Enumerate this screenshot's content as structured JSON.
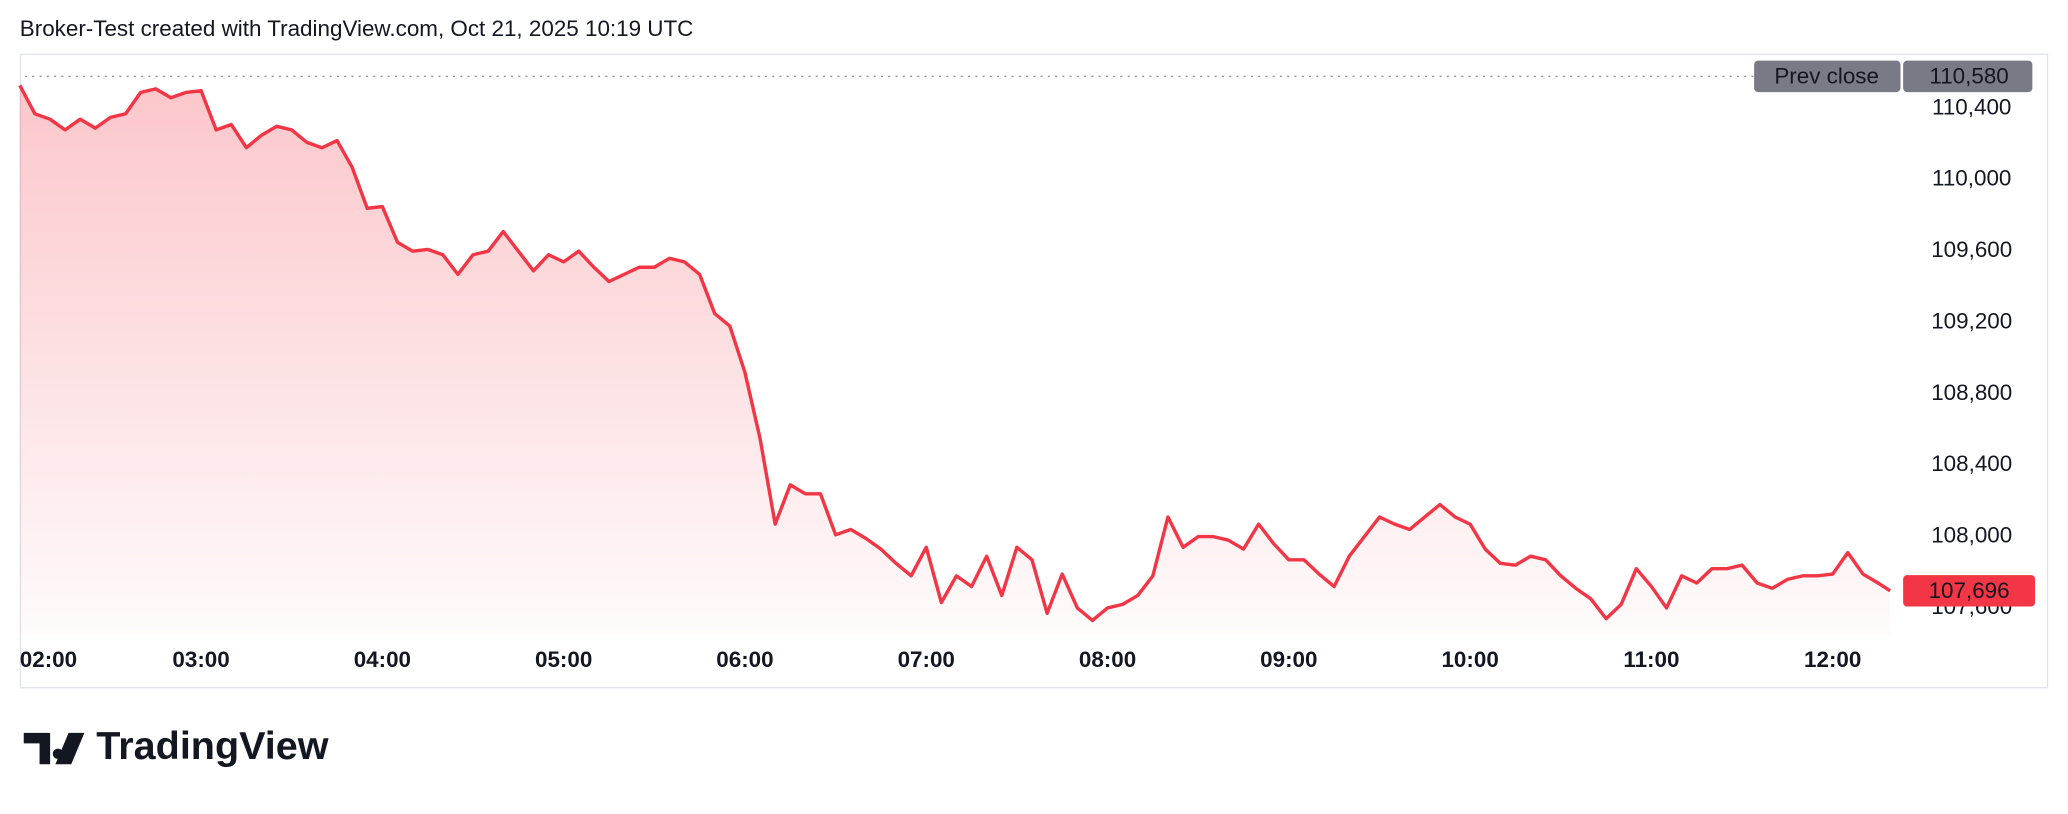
{
  "header": {
    "text": "Broker-Test created with TradingView.com, Oct 21, 2025 10:19 UTC"
  },
  "footer": {
    "logo_text": "TradingView"
  },
  "chart_data": {
    "type": "area-line",
    "color": "#f23645",
    "x": [
      120,
      125,
      130,
      135,
      140,
      145,
      150,
      155,
      160,
      165,
      170,
      175,
      180,
      185,
      190,
      195,
      200,
      205,
      210,
      215,
      220,
      225,
      230,
      235,
      240,
      245,
      250,
      255,
      260,
      265,
      270,
      275,
      280,
      285,
      290,
      295,
      300,
      305,
      310,
      315,
      320,
      325,
      330,
      335,
      340,
      345,
      350,
      355,
      360,
      365,
      370,
      375,
      380,
      385,
      390,
      395,
      400,
      405,
      410,
      415,
      420,
      425,
      430,
      435,
      440,
      445,
      450,
      455,
      460,
      465,
      470,
      475,
      480,
      485,
      490,
      495,
      500,
      505,
      510,
      515,
      520,
      525,
      530,
      535,
      540,
      545,
      550,
      555,
      560,
      565,
      570,
      575,
      580,
      585,
      590,
      595,
      600,
      605,
      610,
      615,
      620,
      625,
      630,
      635,
      640,
      645,
      650,
      655,
      660,
      665,
      670,
      675,
      680,
      685,
      690,
      695,
      700,
      705,
      710,
      715,
      720,
      725,
      730,
      735,
      739
    ],
    "values": [
      110530,
      110370,
      110340,
      110280,
      110340,
      110290,
      110350,
      110370,
      110490,
      110510,
      110460,
      110490,
      110500,
      110280,
      110310,
      110180,
      110250,
      110300,
      110280,
      110210,
      110180,
      110220,
      110070,
      109840,
      109850,
      109650,
      109600,
      109610,
      109580,
      109470,
      109580,
      109600,
      109710,
      109600,
      109490,
      109580,
      109540,
      109600,
      109510,
      109430,
      109470,
      109510,
      109510,
      109560,
      109540,
      109470,
      109250,
      109180,
      108920,
      108550,
      108070,
      108290,
      108240,
      108240,
      108010,
      108040,
      107990,
      107930,
      107850,
      107780,
      107940,
      107630,
      107780,
      107720,
      107890,
      107670,
      107940,
      107870,
      107570,
      107790,
      107600,
      107530,
      107600,
      107620,
      107670,
      107780,
      108110,
      107940,
      108000,
      108000,
      107980,
      107930,
      108070,
      107960,
      107870,
      107870,
      107790,
      107720,
      107890,
      108000,
      108110,
      108070,
      108040,
      108110,
      108180,
      108110,
      108070,
      107930,
      107850,
      107840,
      107890,
      107870,
      107780,
      107710,
      107650,
      107540,
      107620,
      107820,
      107720,
      107600,
      107780,
      107740,
      107820,
      107820,
      107840,
      107740,
      107710,
      107760,
      107780,
      107780,
      107790,
      107910,
      107790,
      107740,
      107696
    ],
    "xlim": [
      120,
      742
    ],
    "ylim": [
      107450,
      110700
    ],
    "xticks": [
      {
        "value": 120,
        "label": "02:00"
      },
      {
        "value": 180,
        "label": "03:00"
      },
      {
        "value": 240,
        "label": "04:00"
      },
      {
        "value": 300,
        "label": "05:00"
      },
      {
        "value": 360,
        "label": "06:00"
      },
      {
        "value": 420,
        "label": "07:00"
      },
      {
        "value": 480,
        "label": "08:00"
      },
      {
        "value": 540,
        "label": "09:00"
      },
      {
        "value": 600,
        "label": "10:00"
      },
      {
        "value": 660,
        "label": "11:00"
      },
      {
        "value": 720,
        "label": "12:00"
      }
    ],
    "yticks": [
      {
        "value": 107600,
        "label": "107,600"
      },
      {
        "value": 108000,
        "label": "108,000"
      },
      {
        "value": 108400,
        "label": "108,400"
      },
      {
        "value": 108800,
        "label": "108,800"
      },
      {
        "value": 109200,
        "label": "109,200"
      },
      {
        "value": 109600,
        "label": "109,600"
      },
      {
        "value": 110000,
        "label": "110,000"
      },
      {
        "value": 110400,
        "label": "110,400"
      }
    ],
    "prev_close": {
      "name": "Prev close",
      "value": 110580,
      "label": "110,580"
    },
    "last_price": {
      "value": 107696,
      "label": "107,696"
    }
  }
}
